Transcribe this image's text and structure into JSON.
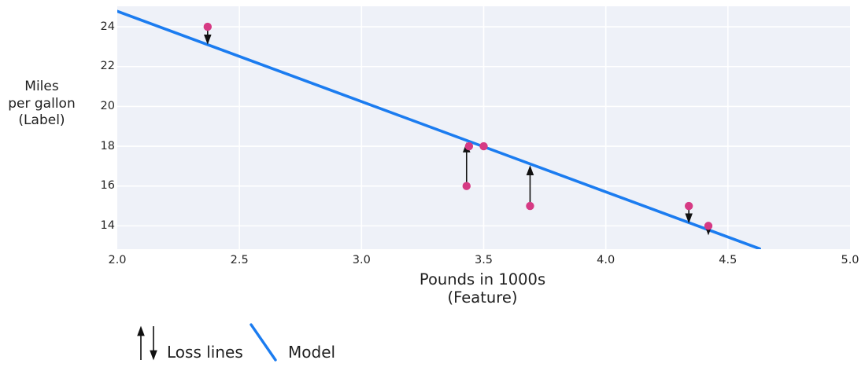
{
  "chart_data": {
    "type": "scatter",
    "title": "",
    "xlabel_lines": [
      "Pounds in 1000s",
      "(Feature)"
    ],
    "ylabel_lines": [
      "Miles",
      "per gallon",
      "(Label)"
    ],
    "xlim": [
      2.0,
      5.0
    ],
    "ylim": [
      12.83,
      25.03
    ],
    "grid": true,
    "x_ticks": [
      2.0,
      2.5,
      3.0,
      3.5,
      4.0,
      4.5,
      5.0
    ],
    "x_tick_labels": [
      "2.0",
      "2.5",
      "3.0",
      "3.5",
      "4.0",
      "4.5",
      "5.0"
    ],
    "y_ticks": [
      14,
      16,
      18,
      20,
      22,
      24
    ],
    "y_tick_labels": [
      "14",
      "16",
      "18",
      "20",
      "22",
      "24"
    ],
    "points": [
      {
        "x": 3.5,
        "y": 18
      },
      {
        "x": 3.69,
        "y": 15
      },
      {
        "x": 3.44,
        "y": 18
      },
      {
        "x": 3.43,
        "y": 16
      },
      {
        "x": 4.34,
        "y": 15
      },
      {
        "x": 4.42,
        "y": 14
      },
      {
        "x": 2.37,
        "y": 24
      }
    ],
    "model_line": {
      "x1": 2.0,
      "y1": 24.78,
      "x2": 4.63,
      "y2": 12.85
    },
    "loss_arrows": [
      {
        "x": 2.37,
        "from": 24,
        "to": 23.2,
        "dir": "down"
      },
      {
        "x": 3.43,
        "from": 16,
        "to": 18.1,
        "dir": "up"
      },
      {
        "x": 3.69,
        "from": 15,
        "to": 16.95,
        "dir": "up"
      },
      {
        "x": 4.34,
        "from": 15,
        "to": 14.22,
        "dir": "down"
      },
      {
        "x": 4.42,
        "from": 14,
        "to": 13.62,
        "dir": "down"
      }
    ],
    "legend": [
      {
        "label": "Loss lines",
        "symbol": "arrows"
      },
      {
        "label": "Model",
        "symbol": "line"
      }
    ],
    "colors": {
      "point": "#d63a84",
      "model": "#1b7cf0",
      "arrow": "#111111",
      "plot_bg": "#eef1f8",
      "grid": "#ffffff",
      "text": "#1f1f1f"
    }
  }
}
